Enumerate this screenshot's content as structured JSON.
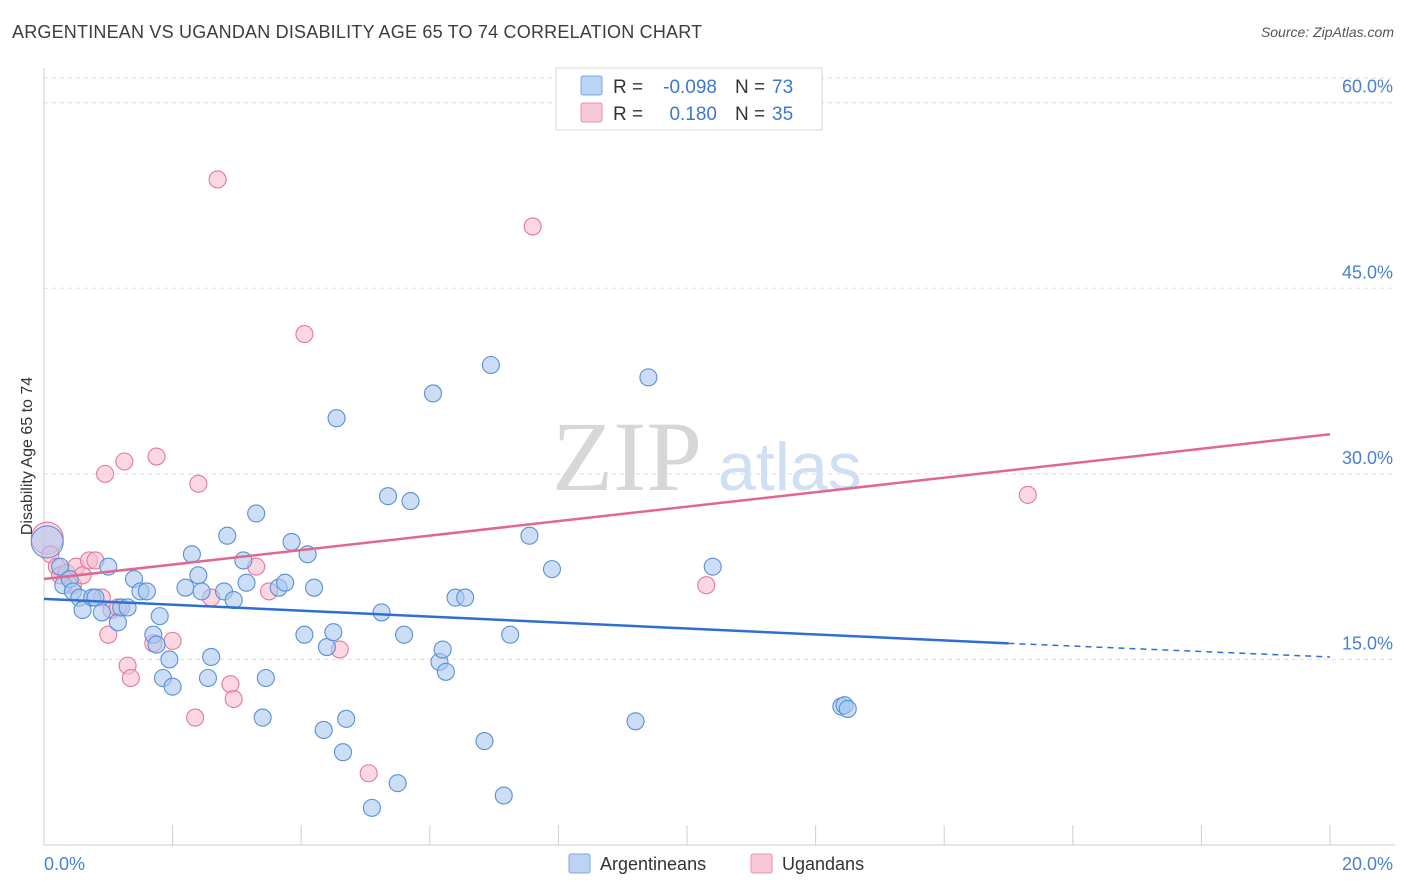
{
  "title": "ARGENTINEAN VS UGANDAN DISABILITY AGE 65 TO 74 CORRELATION CHART",
  "source": "Source: ZipAtlas.com",
  "watermark": {
    "zip": "ZIP",
    "atlas": "atlas"
  },
  "colors": {
    "blue_fill": "#a9c8f0",
    "blue_stroke": "#5b8fd6",
    "blue_line": "#2f6fd0",
    "pink_fill": "#f6bccd",
    "pink_stroke": "#e27a9c",
    "pink_line": "#e0688f",
    "grid": "#dddddd",
    "tick_label": "#4a7fd4"
  },
  "legend": {
    "r_label": "R =",
    "n_label": "N =",
    "rows": [
      {
        "series": "Argentineans",
        "r": "-0.098",
        "n": "73"
      },
      {
        "series": "Ugandans",
        "r": "0.180",
        "n": "35"
      }
    ]
  },
  "chart_data": {
    "type": "scatter",
    "title": "ARGENTINEAN VS UGANDAN DISABILITY AGE 65 TO 74 CORRELATION CHART",
    "xlabel": "",
    "ylabel": "Disability Age 65 to 74",
    "xlim": [
      0,
      20
    ],
    "ylim": [
      0,
      62
    ],
    "x_tick_labels": [
      "0.0%",
      "20.0%"
    ],
    "y_ticks": [
      15,
      30,
      45,
      60
    ],
    "y_tick_labels": [
      "15.0%",
      "30.0%",
      "45.0%",
      "60.0%"
    ],
    "series": [
      {
        "name": "Argentineans",
        "r": -0.098,
        "n": 73,
        "trend": {
          "x0": 0,
          "y0": 19.9,
          "x1": 15.0,
          "y1": 16.3,
          "dash_to_x": 20,
          "dash_to_y": 15.2
        },
        "points": [
          [
            0.05,
            24.5
          ],
          [
            0.25,
            22.5
          ],
          [
            0.3,
            21.0
          ],
          [
            0.4,
            21.5
          ],
          [
            0.45,
            20.5
          ],
          [
            0.55,
            20.0
          ],
          [
            0.6,
            19.0
          ],
          [
            0.75,
            20.0
          ],
          [
            0.8,
            20.0
          ],
          [
            0.9,
            18.8
          ],
          [
            1.0,
            22.5
          ],
          [
            1.15,
            18.0
          ],
          [
            1.2,
            19.2
          ],
          [
            1.3,
            19.2
          ],
          [
            1.4,
            21.5
          ],
          [
            1.5,
            20.5
          ],
          [
            1.6,
            20.5
          ],
          [
            1.7,
            17.0
          ],
          [
            1.75,
            16.2
          ],
          [
            1.8,
            18.5
          ],
          [
            1.85,
            13.5
          ],
          [
            1.95,
            15.0
          ],
          [
            2.0,
            12.8
          ],
          [
            2.2,
            20.8
          ],
          [
            2.3,
            23.5
          ],
          [
            2.4,
            21.8
          ],
          [
            2.45,
            20.5
          ],
          [
            2.55,
            13.5
          ],
          [
            2.6,
            15.2
          ],
          [
            2.8,
            20.5
          ],
          [
            2.85,
            25.0
          ],
          [
            2.95,
            19.8
          ],
          [
            3.1,
            23.0
          ],
          [
            3.15,
            21.2
          ],
          [
            3.3,
            26.8
          ],
          [
            3.4,
            10.3
          ],
          [
            3.45,
            13.5
          ],
          [
            3.65,
            20.8
          ],
          [
            3.75,
            21.2
          ],
          [
            3.85,
            24.5
          ],
          [
            4.05,
            17.0
          ],
          [
            4.1,
            23.5
          ],
          [
            4.2,
            20.8
          ],
          [
            4.35,
            9.3
          ],
          [
            4.4,
            16.0
          ],
          [
            4.5,
            17.2
          ],
          [
            4.55,
            34.5
          ],
          [
            4.65,
            7.5
          ],
          [
            4.7,
            10.2
          ],
          [
            5.1,
            3.0
          ],
          [
            5.25,
            18.8
          ],
          [
            5.35,
            28.2
          ],
          [
            5.5,
            5.0
          ],
          [
            5.6,
            17.0
          ],
          [
            5.7,
            27.8
          ],
          [
            6.05,
            36.5
          ],
          [
            6.15,
            14.8
          ],
          [
            6.2,
            15.8
          ],
          [
            6.25,
            14.0
          ],
          [
            6.4,
            20.0
          ],
          [
            6.55,
            20.0
          ],
          [
            6.85,
            8.4
          ],
          [
            6.95,
            38.8
          ],
          [
            7.15,
            4.0
          ],
          [
            7.25,
            17.0
          ],
          [
            7.55,
            25.0
          ],
          [
            7.9,
            22.3
          ],
          [
            9.2,
            10.0
          ],
          [
            9.4,
            37.8
          ],
          [
            10.4,
            22.5
          ],
          [
            12.4,
            11.2
          ],
          [
            12.45,
            11.3
          ],
          [
            12.5,
            11.0
          ]
        ]
      },
      {
        "name": "Ugandans",
        "r": 0.18,
        "n": 35,
        "trend": {
          "x0": 0,
          "y0": 21.5,
          "x1": 20,
          "y1": 33.2
        },
        "points": [
          [
            0.05,
            24.8
          ],
          [
            0.1,
            23.5
          ],
          [
            0.2,
            22.5
          ],
          [
            0.25,
            21.8
          ],
          [
            0.35,
            22.0
          ],
          [
            0.45,
            21.0
          ],
          [
            0.5,
            22.5
          ],
          [
            0.6,
            21.8
          ],
          [
            0.7,
            23.0
          ],
          [
            0.8,
            23.0
          ],
          [
            0.9,
            20.0
          ],
          [
            0.95,
            30.0
          ],
          [
            1.0,
            17.0
          ],
          [
            1.05,
            19.0
          ],
          [
            1.15,
            19.2
          ],
          [
            1.25,
            31.0
          ],
          [
            1.3,
            14.5
          ],
          [
            1.35,
            13.5
          ],
          [
            1.7,
            16.3
          ],
          [
            1.75,
            31.4
          ],
          [
            2.0,
            16.5
          ],
          [
            2.35,
            10.3
          ],
          [
            2.4,
            29.2
          ],
          [
            2.6,
            20.0
          ],
          [
            2.7,
            53.8
          ],
          [
            2.9,
            13.0
          ],
          [
            2.95,
            11.8
          ],
          [
            3.3,
            22.5
          ],
          [
            3.5,
            20.5
          ],
          [
            4.05,
            41.3
          ],
          [
            4.6,
            15.8
          ],
          [
            5.05,
            5.8
          ],
          [
            7.6,
            50.0
          ],
          [
            10.3,
            21.0
          ],
          [
            15.3,
            28.3
          ]
        ]
      }
    ]
  },
  "bottom_legend": [
    "Argentineans",
    "Ugandans"
  ]
}
